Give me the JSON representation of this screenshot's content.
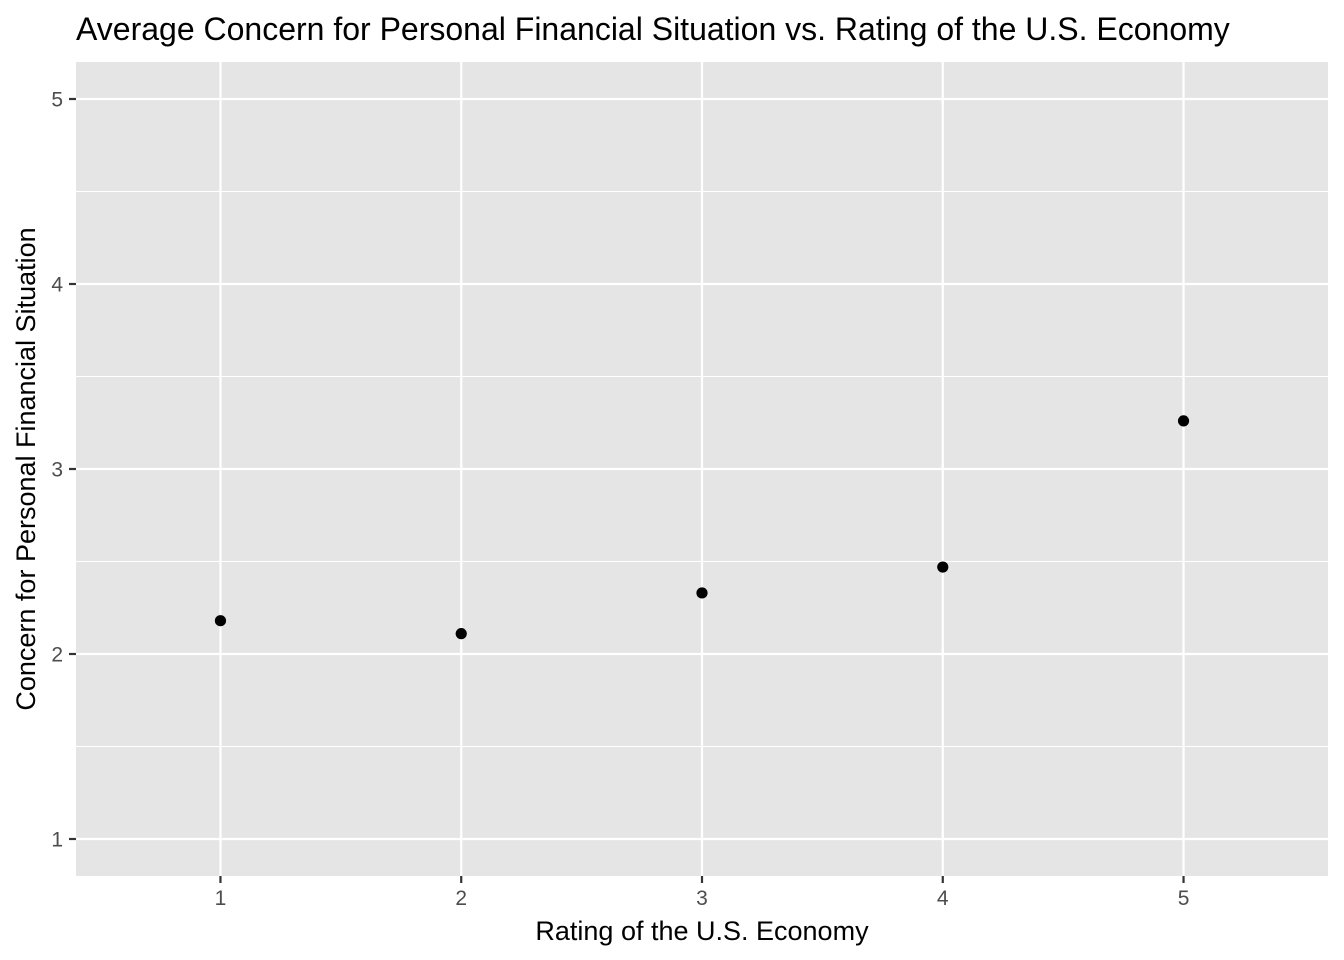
{
  "chart_data": {
    "type": "scatter",
    "title": "Average Concern for Personal Financial Situation vs. Rating of the U.S. Economy",
    "xlabel": "Rating of the U.S. Economy",
    "ylabel": "Concern for Personal Financial Situation",
    "x": [
      1,
      2,
      3,
      4,
      5
    ],
    "y": [
      2.18,
      2.11,
      2.33,
      2.47,
      3.26
    ],
    "xlim": [
      0.4,
      5.6
    ],
    "ylim": [
      0.8,
      5.2
    ],
    "x_ticks": [
      "1",
      "2",
      "3",
      "4",
      "5"
    ],
    "y_ticks": [
      "1",
      "2",
      "3",
      "4",
      "5"
    ],
    "grid": true,
    "colors": {
      "panel_background": "#e5e5e5",
      "grid": "#ffffff",
      "point": "#000000",
      "tick_label": "#4d4d4d",
      "tick_mark": "#333333"
    }
  }
}
